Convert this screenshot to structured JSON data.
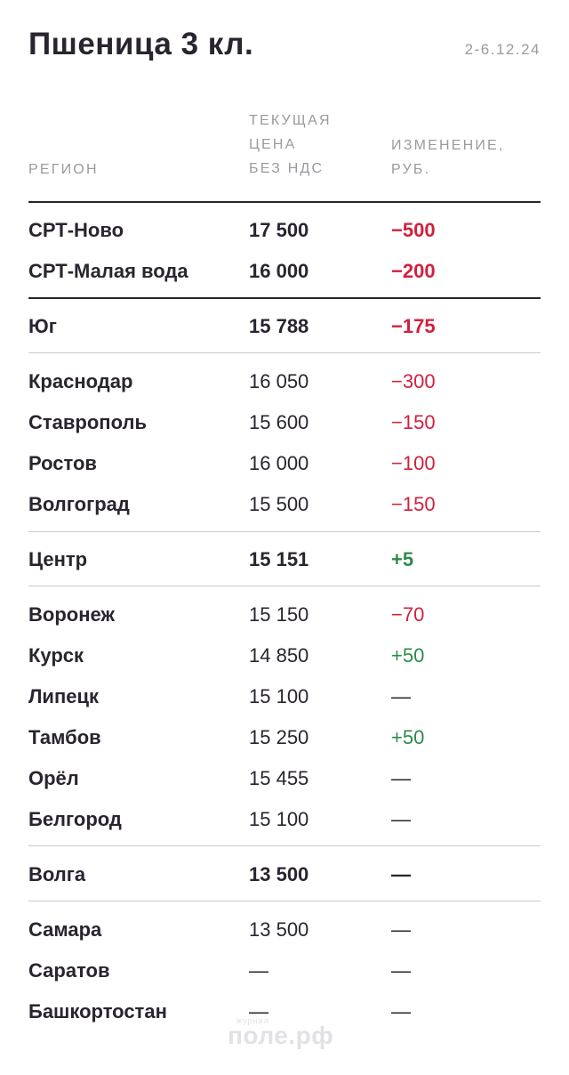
{
  "title": "Пшеница 3 кл.",
  "date": "2-6.12.24",
  "headers": {
    "region": "РЕГИОН",
    "price": [
      "ТЕКУЩАЯ",
      "ЦЕНА",
      "БЕЗ НДС"
    ],
    "change": [
      "ИЗМЕНЕНИЕ,",
      "РУБ."
    ]
  },
  "rows": [
    {
      "region": "СРТ-Ново",
      "price": "17 500",
      "change": "−500"
    },
    {
      "region": "СРТ-Малая вода",
      "price": "16 000",
      "change": "−200"
    },
    {
      "region": "Юг",
      "price": "15 788",
      "change": "−175"
    },
    {
      "region": "Краснодар",
      "price": "16 050",
      "change": "−300"
    },
    {
      "region": "Ставрополь",
      "price": "15 600",
      "change": "−150"
    },
    {
      "region": "Ростов",
      "price": "16 000",
      "change": "−100"
    },
    {
      "region": "Волгоград",
      "price": "15 500",
      "change": "−150"
    },
    {
      "region": "Центр",
      "price": "15 151",
      "change": "+5"
    },
    {
      "region": "Воронеж",
      "price": "15 150",
      "change": "−70"
    },
    {
      "region": "Курск",
      "price": "14 850",
      "change": "+50"
    },
    {
      "region": "Липецк",
      "price": "15 100",
      "change": "—"
    },
    {
      "region": "Тамбов",
      "price": "15 250",
      "change": "+50"
    },
    {
      "region": "Орёл",
      "price": "15 455",
      "change": "—"
    },
    {
      "region": "Белгород",
      "price": "15 100",
      "change": "—"
    },
    {
      "region": "Волга",
      "price": "13 500",
      "change": "—"
    },
    {
      "region": "Самара",
      "price": "13 500",
      "change": "—"
    },
    {
      "region": "Саратов",
      "price": "—",
      "change": "—"
    },
    {
      "region": "Башкортостан",
      "price": "—",
      "change": "—"
    }
  ],
  "watermark": {
    "small": "журнал",
    "main": "поле.рф"
  },
  "colors": {
    "negative": "#d0213f",
    "positive": "#2e8b4a",
    "text": "#2a2430",
    "muted": "#9a9aa0"
  }
}
